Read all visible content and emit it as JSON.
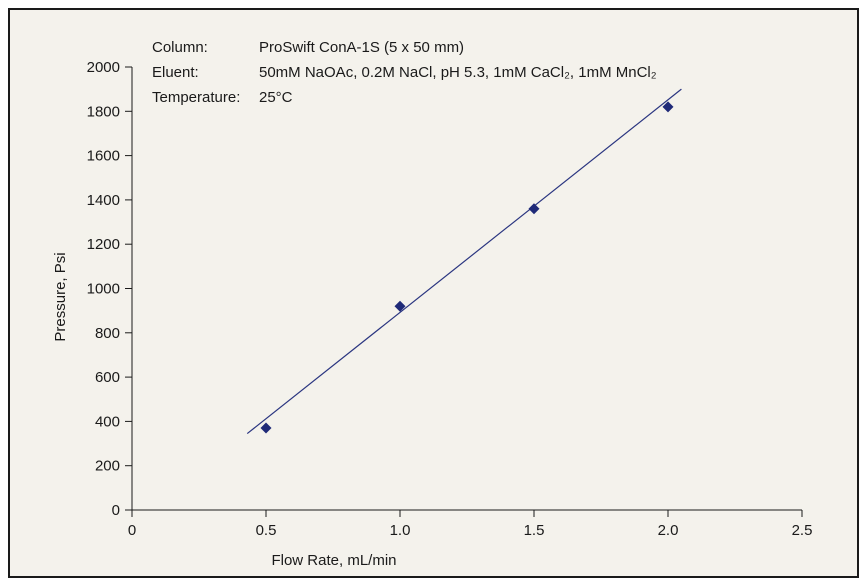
{
  "chart_data": {
    "type": "scatter",
    "title": "",
    "xlabel": "Flow Rate, mL/min",
    "ylabel": "Pressure, Psi",
    "xlim": [
      0,
      2.5
    ],
    "ylim": [
      0,
      2000
    ],
    "xticks": [
      0,
      0.5,
      1.0,
      1.5,
      2.0,
      2.5
    ],
    "xtick_labels": [
      "0",
      "0.5",
      "1.0",
      "1.5",
      "2.0",
      "2.5"
    ],
    "yticks": [
      0,
      200,
      400,
      600,
      800,
      1000,
      1200,
      1400,
      1600,
      1800,
      2000
    ],
    "ytick_labels": [
      "0",
      "200",
      "400",
      "600",
      "800",
      "1000",
      "1200",
      "1400",
      "1600",
      "1800",
      "2000"
    ],
    "grid": false,
    "series": [
      {
        "marker": "diamond",
        "color": "#1f2a78",
        "x": [
          0.5,
          1.0,
          1.5,
          2.0
        ],
        "y": [
          370,
          920,
          1360,
          1820
        ]
      }
    ],
    "trendline": {
      "color": "#2a3580",
      "x": [
        0.43,
        2.05
      ],
      "y": [
        345,
        1900
      ]
    },
    "info": {
      "rows": [
        {
          "label": "Column:",
          "value": "ProSwift ConA-1S (5 x 50 mm)"
        },
        {
          "label": "Eluent:",
          "value": "50mM NaOAc, 0.2M NaCl, pH 5.3, 1mM CaCl₂, 1mM MnCl₂"
        },
        {
          "label": "Temperature:",
          "value": "25°C"
        }
      ]
    }
  }
}
